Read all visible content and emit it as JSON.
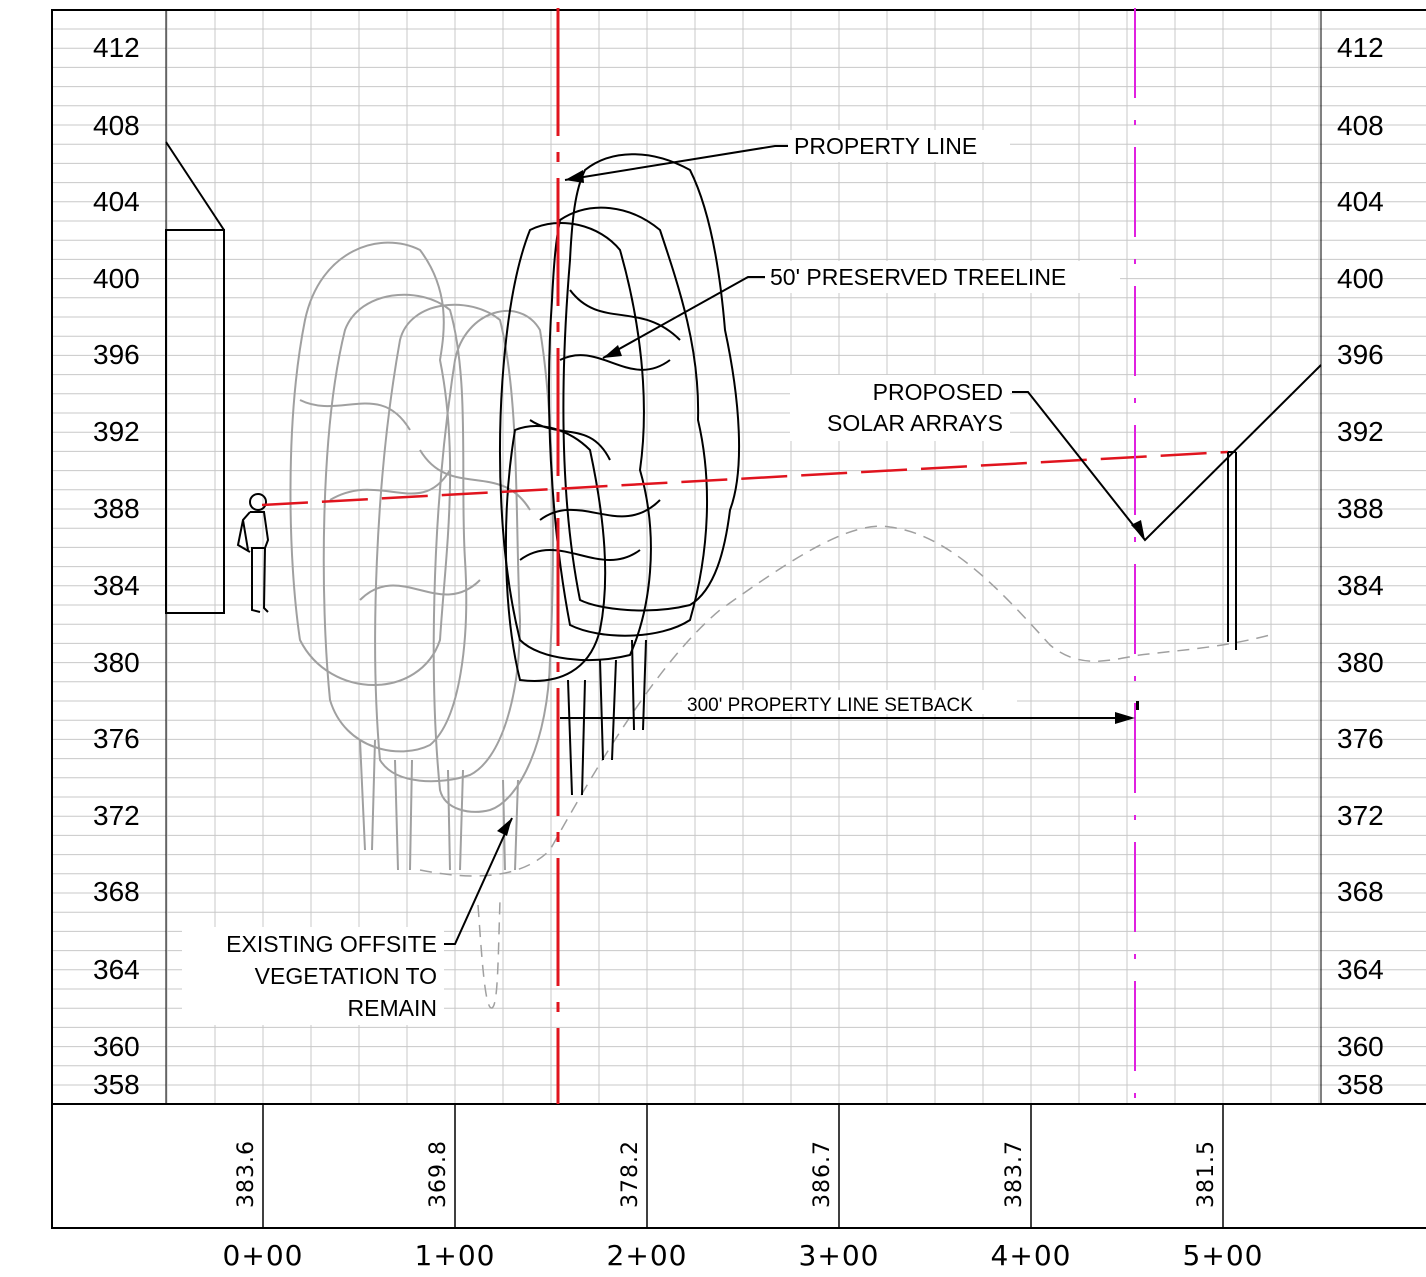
{
  "elevations": [
    "412",
    "408",
    "404",
    "400",
    "396",
    "392",
    "388",
    "384",
    "380",
    "376",
    "372",
    "368",
    "364",
    "360",
    "358"
  ],
  "stations": [
    "0+00",
    "1+00",
    "2+00",
    "3+00",
    "4+00",
    "5+00"
  ],
  "ground_elevations": [
    "383.6",
    "369.8",
    "378.2",
    "386.7",
    "383.7",
    "381.5"
  ],
  "labels": {
    "property_line": "PROPERTY LINE",
    "treeline": "50' PRESERVED TREELINE",
    "solar_line1": "PROPOSED",
    "solar_line2": "SOLAR ARRAYS",
    "setback": "300' PROPERTY LINE SETBACK",
    "veg_line1": "EXISTING OFFSITE",
    "veg_line2": "VEGETATION TO",
    "veg_line3": "REMAIN"
  },
  "colors": {
    "property_line": "#e0141e",
    "setback_line": "#e020e0",
    "grid": "#c8c8c8",
    "existing_vegetation": "#a0a0a0",
    "preserved_treeline": "#000000",
    "ground_profile": "#a0a0a0"
  }
}
